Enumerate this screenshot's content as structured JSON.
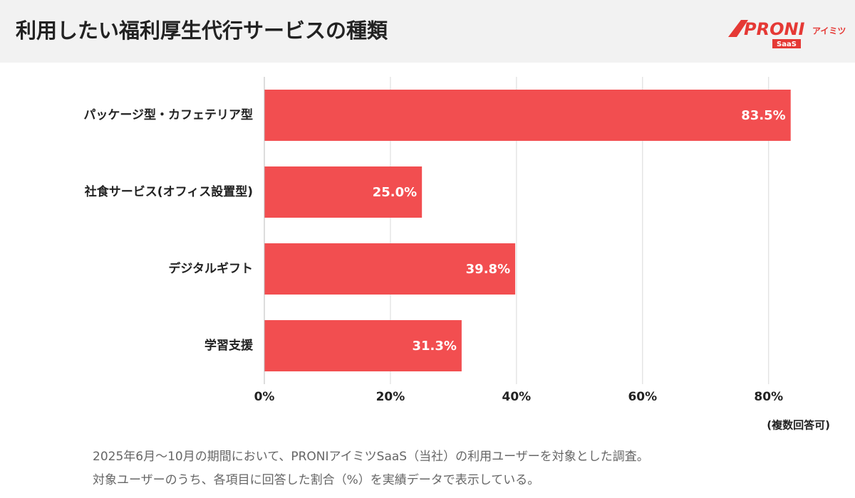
{
  "chart_data": {
    "type": "bar",
    "orientation": "horizontal",
    "title": "利用したい福利厚生代行サービスの種類",
    "categories": [
      "パッケージ型・カフェテリア型",
      "社食サービス(オフィス設置型)",
      "デジタルギフト",
      "学習支援"
    ],
    "values": [
      83.5,
      25.0,
      39.8,
      31.3
    ],
    "value_labels": [
      "83.5%",
      "25.0%",
      "39.8%",
      "31.3%"
    ],
    "color": "#f24e50",
    "xlim": [
      0,
      85
    ],
    "xticks": [
      {
        "value": 0,
        "label": "0%"
      },
      {
        "value": 20,
        "label": "20%"
      },
      {
        "value": 40,
        "label": "40%"
      },
      {
        "value": 60,
        "label": "60%"
      },
      {
        "value": 80,
        "label": "80%"
      }
    ],
    "grid": true,
    "note": "(複数回答可)",
    "footnotes": [
      "2025年6月〜10月の期間において、PRONIアイミツSaaS（当社）の利用ユーザーを対象とした調査。",
      "対象ユーザーのうち、各項目に回答した割合（%）を実績データで表示している。"
    ]
  },
  "logo": {
    "brand": "PRONI",
    "sub": "アイミツ",
    "badge": "SaaS"
  }
}
